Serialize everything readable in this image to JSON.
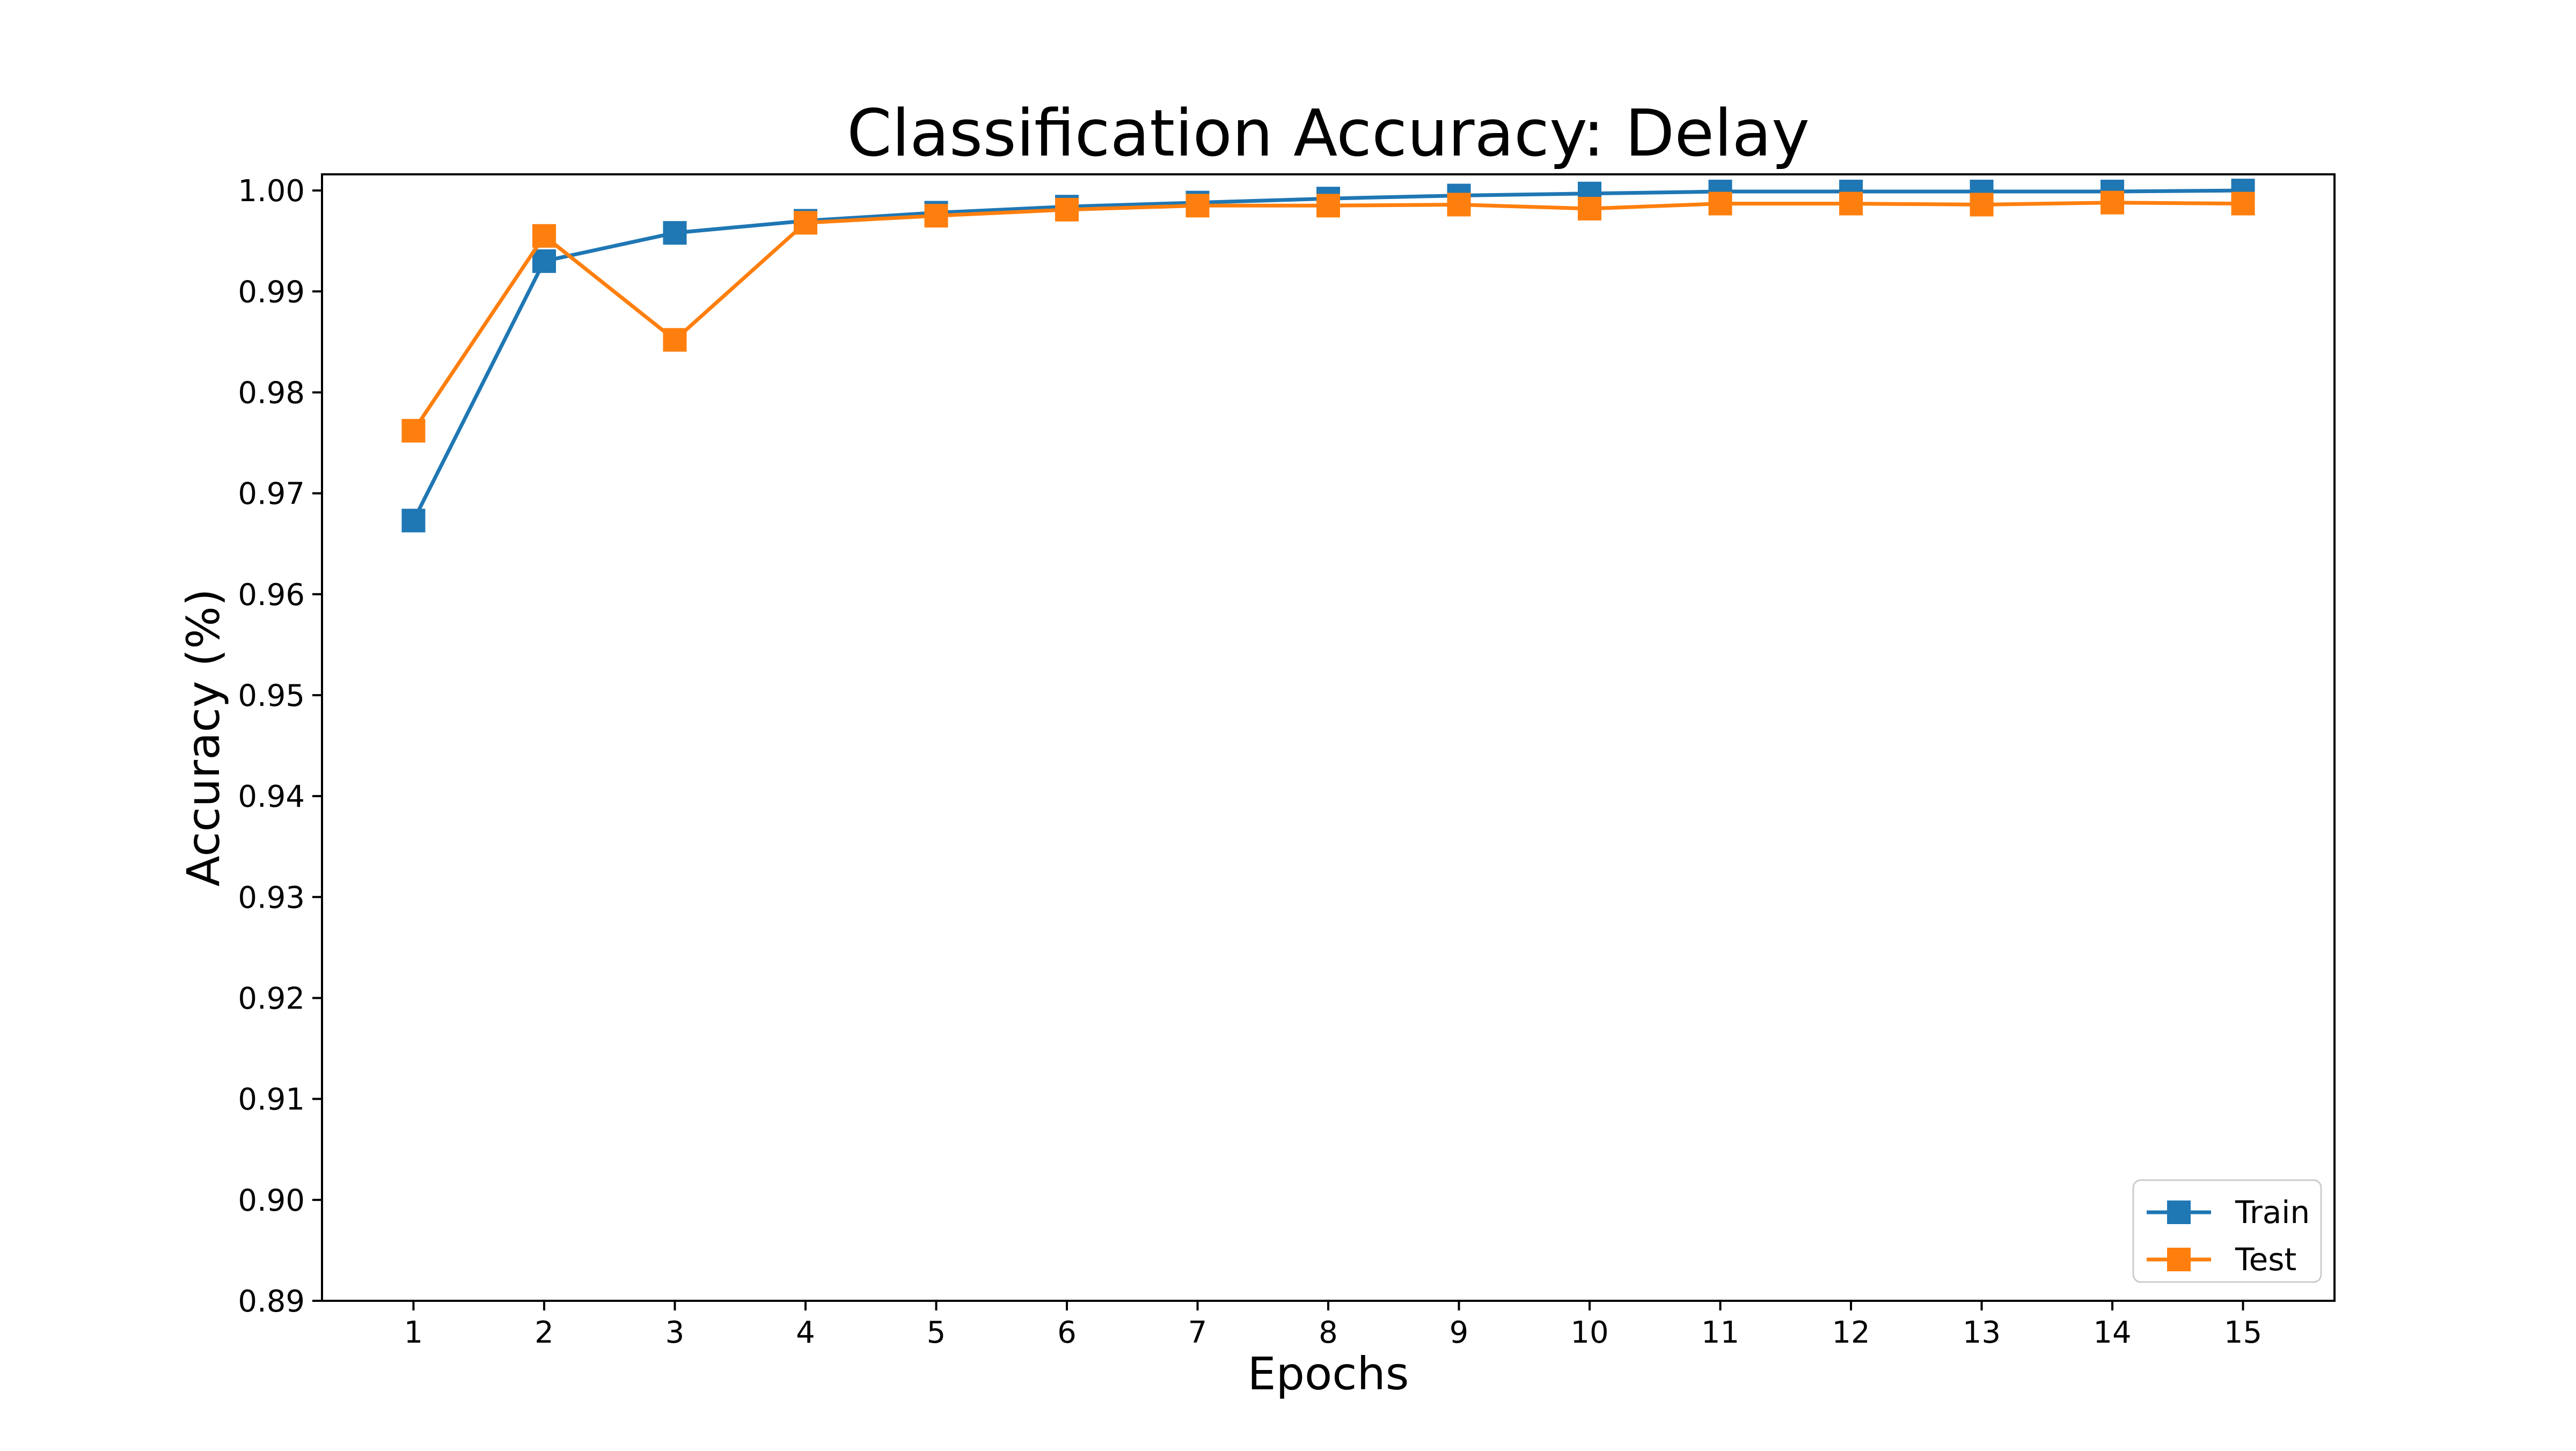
{
  "chart_data": {
    "type": "line",
    "title": "Classification Accuracy: Delay",
    "xlabel": "Epochs",
    "ylabel": "Accuracy (%)",
    "x": [
      1,
      2,
      3,
      4,
      5,
      6,
      7,
      8,
      9,
      10,
      11,
      12,
      13,
      14,
      15
    ],
    "xticks": [
      "1",
      "2",
      "3",
      "4",
      "5",
      "6",
      "7",
      "8",
      "9",
      "10",
      "11",
      "12",
      "13",
      "14",
      "15"
    ],
    "xlim": [
      0.3,
      15.7
    ],
    "ylim": [
      0.89,
      1.0016
    ],
    "yticks": [
      "0.89",
      "0.90",
      "0.91",
      "0.92",
      "0.93",
      "0.94",
      "0.95",
      "0.96",
      "0.97",
      "0.98",
      "0.99",
      "1.00"
    ],
    "grid": false,
    "legend_position": "lower-right",
    "marker": "square",
    "series": [
      {
        "name": "Train",
        "color": "#1f77b4",
        "values": [
          0.9673,
          0.993,
          0.9958,
          0.997,
          0.9978,
          0.9984,
          0.9988,
          0.9992,
          0.9995,
          0.9997,
          0.9999,
          0.9999,
          0.9999,
          0.9999,
          1.0
        ]
      },
      {
        "name": "Test",
        "color": "#ff7f0e",
        "values": [
          0.9762,
          0.9955,
          0.9852,
          0.9968,
          0.9975,
          0.9981,
          0.9985,
          0.9985,
          0.9986,
          0.9982,
          0.9987,
          0.9987,
          0.9986,
          0.9988,
          0.9987
        ]
      }
    ]
  }
}
